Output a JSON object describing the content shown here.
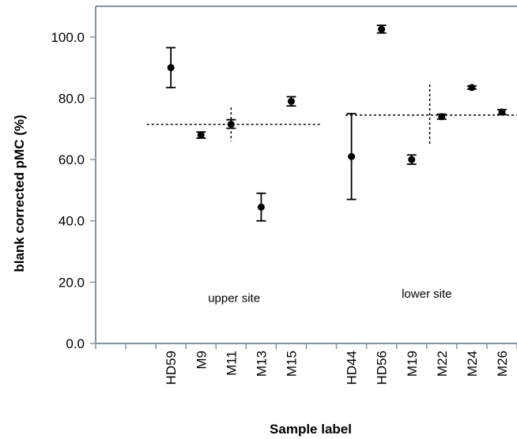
{
  "chart_data": {
    "type": "scatter",
    "xlabel": "Sample label",
    "ylabel": "blank corrected pMC (%)",
    "ylim": [
      0,
      110
    ],
    "ytick_values": [
      0,
      20,
      40,
      60,
      80,
      100
    ],
    "ytick_labels": [
      "0.0",
      "20.0",
      "40.0",
      "60.0",
      "80.0",
      "100.0"
    ],
    "grid": false,
    "legend": "none",
    "x_slot_count": 14,
    "points": [
      {
        "label": "HD59",
        "slot": 2,
        "y": 90.0,
        "err_low": 83.5,
        "err_high": 96.5
      },
      {
        "label": "M9",
        "slot": 3,
        "y": 68.0,
        "err_low": 67.0,
        "err_high": 69.0
      },
      {
        "label": "M11",
        "slot": 4,
        "y": 71.5,
        "err_low": 70.2,
        "err_high": 73.0
      },
      {
        "label": "M13",
        "slot": 5,
        "y": 44.5,
        "err_low": 40.0,
        "err_high": 49.0
      },
      {
        "label": "M15",
        "slot": 6,
        "y": 79.0,
        "err_low": 77.5,
        "err_high": 80.5
      },
      {
        "label": "HD44",
        "slot": 8,
        "y": 61.0,
        "err_low": 47.0,
        "err_high": 75.0
      },
      {
        "label": "HD56",
        "slot": 9,
        "y": 102.5,
        "err_low": 101.3,
        "err_high": 103.8
      },
      {
        "label": "M19",
        "slot": 10,
        "y": 60.0,
        "err_low": 58.5,
        "err_high": 61.5
      },
      {
        "label": "M22",
        "slot": 11,
        "y": 74.0,
        "err_low": 73.2,
        "err_high": 74.8
      },
      {
        "label": "M24",
        "slot": 12,
        "y": 83.5,
        "err_low": 83.0,
        "err_high": 84.0
      },
      {
        "label": "M26",
        "slot": 13,
        "y": 75.5,
        "err_low": 74.7,
        "err_high": 76.3
      }
    ],
    "reference_lines": [
      {
        "group": "upper site",
        "mean": 71.5,
        "slot_from": 1.2,
        "slot_to": 7.0,
        "vline_slot": 4,
        "vline_low": 66.0,
        "vline_high": 77.0
      },
      {
        "group": "lower site",
        "mean": 74.5,
        "slot_from": 7.8,
        "slot_to": 14.0,
        "vline_slot": 10.6,
        "vline_low": 65.0,
        "vline_high": 84.5
      }
    ],
    "annotations": [
      {
        "text": "upper site",
        "slot": 4.1,
        "y": 13.5
      },
      {
        "text": "lower site",
        "slot": 10.5,
        "y": 15.0
      }
    ]
  },
  "colors": {
    "axis": "#7f97a3",
    "marker": "#000000",
    "reference": "#000000"
  }
}
